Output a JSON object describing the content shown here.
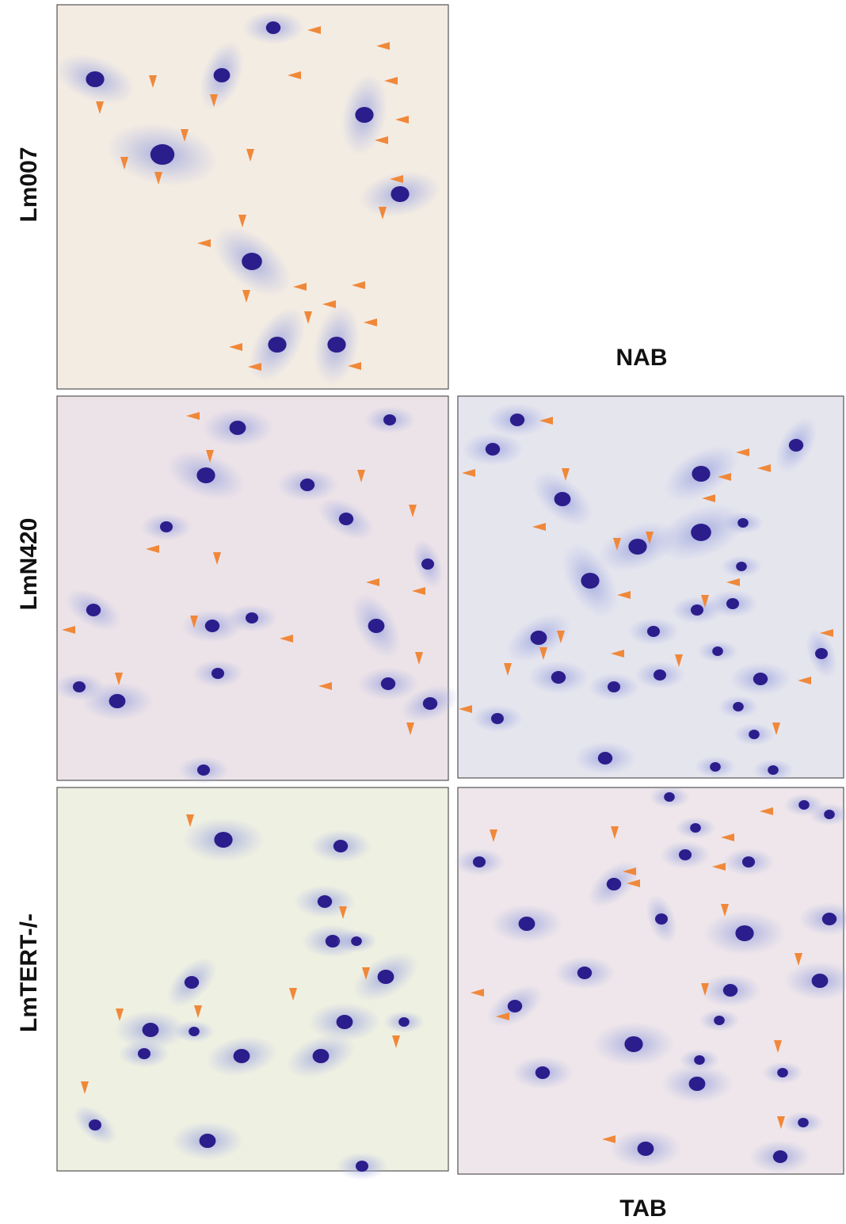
{
  "rows": [
    {
      "label": "Lm007"
    },
    {
      "label": "LmN420"
    },
    {
      "label": "LmTERT-/-"
    }
  ],
  "columns": [
    {
      "label": "NAB"
    },
    {
      "label": "TAB"
    }
  ]
}
